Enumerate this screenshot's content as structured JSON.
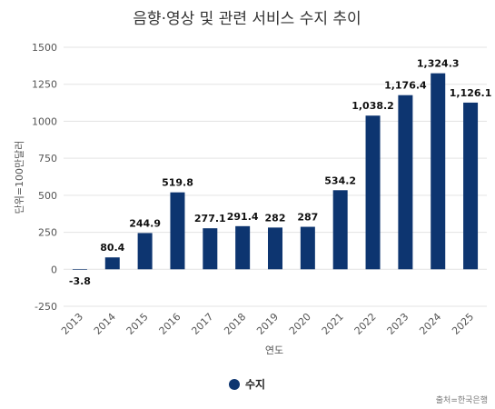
{
  "chart_data": {
    "type": "bar",
    "title": "음향·영상 및 관련 서비스 수지 추이",
    "xlabel": "연도",
    "ylabel": "단위=100만달러",
    "categories": [
      "2013",
      "2014",
      "2015",
      "2016",
      "2017",
      "2018",
      "2019",
      "2020",
      "2021",
      "2022",
      "2023",
      "2024",
      "2025"
    ],
    "series": [
      {
        "name": "수지",
        "color": "#0d3570",
        "values": [
          -3.8,
          80.4,
          244.9,
          519.8,
          277.1,
          291.4,
          282,
          287,
          534.2,
          1038.2,
          1176.4,
          1324.3,
          1126.1
        ],
        "labels": [
          "-3.8",
          "80.4",
          "244.9",
          "519.8",
          "277.1",
          "291.4",
          "282",
          "287",
          "534.2",
          "1,038.2",
          "1,176.4",
          "1,324.3",
          "1,126.1"
        ]
      }
    ],
    "ylim": [
      -250,
      1500
    ],
    "yticks": [
      -250,
      0,
      250,
      500,
      750,
      1000,
      1250,
      1500
    ],
    "ytick_labels": [
      "-250",
      "0",
      "250",
      "500",
      "750",
      "1000",
      "1250",
      "1500"
    ],
    "grid": true,
    "legend_position": "bottom-center",
    "source": "출처=한국은행"
  }
}
